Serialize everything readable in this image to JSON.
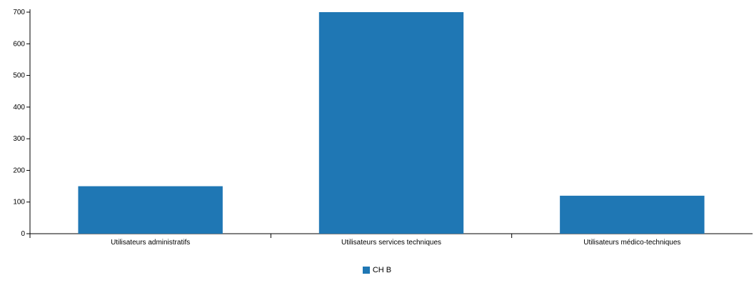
{
  "chart_data": {
    "type": "bar",
    "categories": [
      "Utilisateurs administratifs",
      "Utilisateurs services techniques",
      "Utilisateurs médico-techniques"
    ],
    "series": [
      {
        "name": "CH B",
        "values": [
          150,
          700,
          120
        ],
        "color": "#1f77b4"
      }
    ],
    "yticks": [
      0,
      100,
      200,
      300,
      400,
      500,
      600,
      700
    ],
    "ylim": [
      0,
      700
    ],
    "grid": false,
    "legend_position": "bottom-center"
  }
}
